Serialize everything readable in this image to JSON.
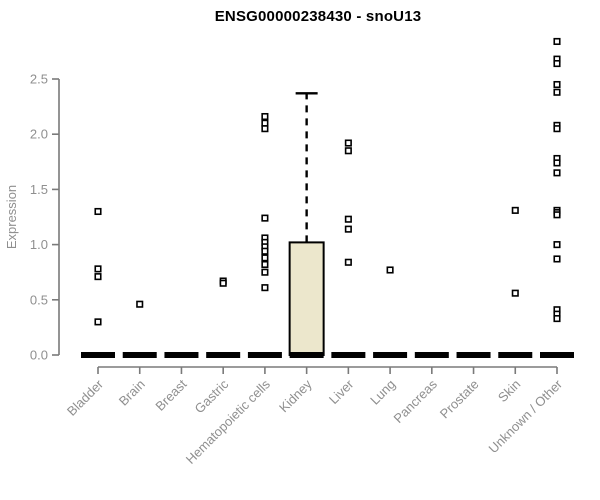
{
  "chart_data": {
    "type": "boxplot",
    "title": "ENSG00000238430 - snoU13",
    "ylabel": "Expression",
    "xlabel": "",
    "ylim": [
      0,
      2.9
    ],
    "yticks": [
      "0.0",
      "0.5",
      "1.0",
      "1.5",
      "2.0",
      "2.5"
    ],
    "grid": false,
    "legend": false,
    "marker": "open-square",
    "categories": [
      "Bladder",
      "Brain",
      "Breast",
      "Gastric",
      "Hematopoietic cells",
      "Kidney",
      "Liver",
      "Lung",
      "Pancreas",
      "Prostate",
      "Skin",
      "Unknown / Other"
    ],
    "series": [
      {
        "name": "Bladder",
        "median": 0,
        "box": null,
        "points": [
          1.3,
          0.78,
          0.71,
          0.3
        ]
      },
      {
        "name": "Brain",
        "median": 0,
        "box": null,
        "points": [
          0.46
        ]
      },
      {
        "name": "Breast",
        "median": 0,
        "box": null,
        "points": []
      },
      {
        "name": "Gastric",
        "median": 0,
        "box": null,
        "points": [
          0.67,
          0.65
        ]
      },
      {
        "name": "Hematopoietic cells",
        "median": 0,
        "box": null,
        "points": [
          2.16,
          2.1,
          2.05,
          1.24,
          1.06,
          1.02,
          0.98,
          0.94,
          0.88,
          0.82,
          0.75,
          0.61
        ]
      },
      {
        "name": "Kidney",
        "median": 0,
        "box": {
          "q1": 0,
          "q3": 1.02,
          "whisker_low": 0,
          "whisker_high": 2.37
        },
        "points": []
      },
      {
        "name": "Liver",
        "median": 0,
        "box": null,
        "points": [
          1.92,
          1.85,
          1.23,
          1.14,
          0.84
        ]
      },
      {
        "name": "Lung",
        "median": 0,
        "box": null,
        "points": [
          0.77
        ]
      },
      {
        "name": "Pancreas",
        "median": 0,
        "box": null,
        "points": []
      },
      {
        "name": "Prostate",
        "median": 0,
        "box": null,
        "points": []
      },
      {
        "name": "Skin",
        "median": 0,
        "box": null,
        "points": [
          1.31,
          0.56
        ]
      },
      {
        "name": "Unknown / Other",
        "median": 0,
        "box": null,
        "points": [
          2.84,
          2.68,
          2.64,
          2.45,
          2.38,
          2.08,
          2.05,
          1.78,
          1.74,
          1.65,
          1.31,
          1.29,
          1.27,
          1.0,
          0.87,
          0.41,
          0.37,
          0.33
        ]
      }
    ],
    "colors": {
      "box_fill": "#ece7cc",
      "box_stroke": "#000000",
      "median": "#000000",
      "point_stroke": "#000000",
      "point_fill": "#ffffff",
      "axis_line": "#7a7a7a",
      "axis_text": "#8f8f8f",
      "title": "#000000"
    }
  }
}
